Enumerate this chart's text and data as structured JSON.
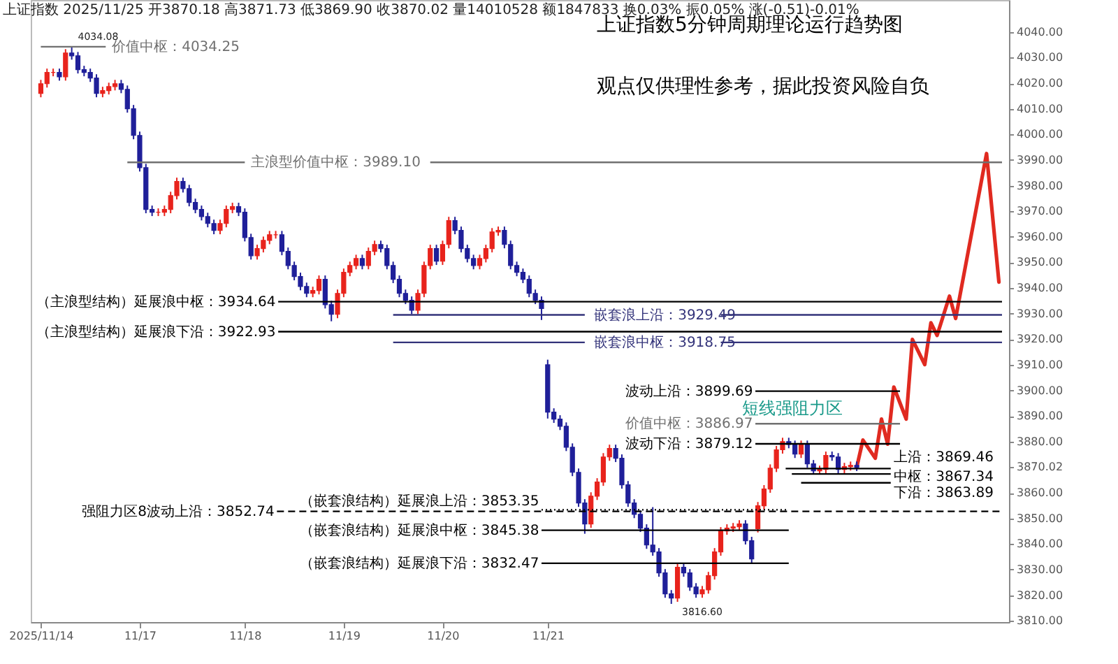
{
  "chart_data": {
    "type": "candlestick",
    "title": "上证指数5分钟周期理论运行趋势图",
    "subtitle": "观点仅供理性参考，据此投资风险自负",
    "categories": [
      "2025/11/14",
      null,
      null,
      null,
      null,
      null,
      null,
      null,
      null,
      null,
      null,
      null,
      null,
      null,
      null,
      null,
      "11/17",
      null,
      null,
      null,
      null,
      null,
      null,
      null,
      null,
      null,
      null,
      null,
      null,
      null,
      null,
      null,
      null,
      "11/18",
      null,
      null,
      null,
      null,
      null,
      null,
      null,
      null,
      null,
      null,
      null,
      null,
      null,
      null,
      null,
      "11/19",
      null,
      null,
      null,
      null,
      null,
      null,
      null,
      null,
      null,
      null,
      null,
      null,
      null,
      null,
      null,
      "11/20",
      null,
      null,
      null,
      null,
      null,
      null,
      null,
      null,
      null,
      null,
      null,
      null,
      null,
      null,
      null,
      null,
      "11/21",
      null,
      null,
      null,
      null,
      null,
      null,
      null,
      null,
      null,
      null,
      null,
      null,
      null,
      null,
      null,
      null,
      null,
      null,
      null,
      null,
      null,
      null,
      null,
      null,
      null,
      null,
      null,
      null,
      null,
      null,
      null,
      null,
      null,
      null,
      null,
      null,
      null,
      null,
      null,
      null,
      null,
      null,
      null,
      null,
      null,
      null,
      null,
      null,
      null,
      null,
      null,
      null,
      null,
      null,
      null,
      null,
      null,
      null,
      null,
      null,
      null,
      null,
      null,
      null,
      null,
      null,
      null,
      null,
      null,
      null,
      null,
      null,
      null
    ],
    "ohlc": [
      [
        4016,
        4021.3,
        4014.5,
        4019.8
      ],
      [
        4019.8,
        4025.7,
        4018.3,
        4024.2
      ],
      [
        4024.2,
        4025.7,
        4022.7,
        4024.2
      ],
      [
        4024.2,
        4025.7,
        4021,
        4022.5
      ],
      [
        4022.5,
        4033.3,
        4021,
        4031.8
      ],
      [
        4031.8,
        4034.08,
        4029.2,
        4030.7
      ],
      [
        4030.7,
        4032.2,
        4023.8,
        4025.3
      ],
      [
        4025.3,
        4026.8,
        4022.7,
        4024.2
      ],
      [
        4024.2,
        4025.7,
        4020.5,
        4022
      ],
      [
        4022,
        4023.5,
        4014.5,
        4016
      ],
      [
        4016,
        4018.6,
        4014.5,
        4017.1
      ],
      [
        4017.1,
        4020.2,
        4015.6,
        4018.7
      ],
      [
        4018.7,
        4021.3,
        4017.2,
        4019.8
      ],
      [
        4019.8,
        4021.3,
        4016.1,
        4017.6
      ],
      [
        4017.6,
        4019.1,
        4008.5,
        4010
      ],
      [
        4010,
        4011.5,
        3998.1,
        3999.6
      ],
      [
        3999.6,
        4001.1,
        3985.5,
        3987
      ],
      [
        3987,
        3988.5,
        3969.2,
        3970.7
      ],
      [
        3970.7,
        3972.2,
        3968.1,
        3969.6
      ],
      [
        3969.6,
        3971.1,
        3968.1,
        3969.6
      ],
      [
        3969.6,
        3972.2,
        3968.1,
        3970.7
      ],
      [
        3970.7,
        3977.6,
        3969.2,
        3976.1
      ],
      [
        3976.1,
        3983.1,
        3974.6,
        3981.6
      ],
      [
        3981.6,
        3983.1,
        3977.3,
        3978.8
      ],
      [
        3978.8,
        3980.3,
        3971.9,
        3973.4
      ],
      [
        3973.4,
        3974.9,
        3969.2,
        3970.7
      ],
      [
        3970.7,
        3972.2,
        3966.4,
        3967.9
      ],
      [
        3967.9,
        3969.4,
        3963.7,
        3965.2
      ],
      [
        3965.2,
        3966.7,
        3961,
        3962.5
      ],
      [
        3962.5,
        3966.7,
        3961,
        3965.2
      ],
      [
        3965.2,
        3972.2,
        3963.7,
        3970.7
      ],
      [
        3970.7,
        3973.3,
        3969.2,
        3971.8
      ],
      [
        3971.8,
        3973.3,
        3968.1,
        3969.6
      ],
      [
        3969.6,
        3971.1,
        3958.2,
        3959.7
      ],
      [
        3959.7,
        3961.2,
        3951.1,
        3952.6
      ],
      [
        3952.6,
        3956.9,
        3951.1,
        3955.4
      ],
      [
        3955.4,
        3960.1,
        3953.9,
        3958.6
      ],
      [
        3958.6,
        3962.3,
        3957.1,
        3960.8
      ],
      [
        3960.8,
        3962.3,
        3959.3,
        3960.8
      ],
      [
        3960.8,
        3962.3,
        3952.8,
        3954.3
      ],
      [
        3954.3,
        3955.8,
        3947.3,
        3948.8
      ],
      [
        3948.8,
        3950.3,
        3943,
        3944.5
      ],
      [
        3944.5,
        3946,
        3939.1,
        3940.6
      ],
      [
        3940.6,
        3942.1,
        3936.4,
        3937.9
      ],
      [
        3937.9,
        3940.5,
        3936.4,
        3939
      ],
      [
        3939,
        3944.9,
        3937.5,
        3943.4
      ],
      [
        3943.4,
        3944.9,
        3932,
        3933.5
      ],
      [
        3933.5,
        3935,
        3927,
        3929.7
      ],
      [
        3929.7,
        3939.4,
        3928.2,
        3937.9
      ],
      [
        3937.9,
        3947.6,
        3936.4,
        3946.1
      ],
      [
        3946.1,
        3950.3,
        3944.6,
        3948.8
      ],
      [
        3948.8,
        3953,
        3947.3,
        3951.5
      ],
      [
        3951.5,
        3953,
        3947.3,
        3948.8
      ],
      [
        3948.8,
        3955.8,
        3947.3,
        3954.3
      ],
      [
        3954.3,
        3958.5,
        3952.8,
        3957
      ],
      [
        3957,
        3958.5,
        3953.9,
        3955.4
      ],
      [
        3955.4,
        3956.9,
        3947.3,
        3948.8
      ],
      [
        3948.8,
        3950.3,
        3941.9,
        3943.4
      ],
      [
        3943.4,
        3944.9,
        3936.4,
        3937.9
      ],
      [
        3937.9,
        3939.4,
        3933.7,
        3935.2
      ],
      [
        3935.2,
        3936.7,
        3929.8,
        3931.3
      ],
      [
        3931.3,
        3939.4,
        3929.8,
        3937.9
      ],
      [
        3937.9,
        3950.3,
        3936.4,
        3948.8
      ],
      [
        3948.8,
        3956.9,
        3947.3,
        3955.4
      ],
      [
        3955.4,
        3956.9,
        3949,
        3950.5
      ],
      [
        3950.5,
        3958.5,
        3949,
        3957
      ],
      [
        3957,
        3967.8,
        3955.5,
        3966.3
      ],
      [
        3966.3,
        3967.8,
        3961,
        3962.5
      ],
      [
        3962.5,
        3964,
        3953.9,
        3955.4
      ],
      [
        3955.4,
        3956.9,
        3950,
        3951.5
      ],
      [
        3951.5,
        3953,
        3947.3,
        3948.8
      ],
      [
        3948.8,
        3953,
        3947.3,
        3951.5
      ],
      [
        3951.5,
        3956.9,
        3950,
        3955.4
      ],
      [
        3955.4,
        3963.4,
        3953.9,
        3961.9
      ],
      [
        3961.9,
        3964,
        3960.4,
        3962.5
      ],
      [
        3962.5,
        3964,
        3955.5,
        3957
      ],
      [
        3957,
        3958.5,
        3947.3,
        3948.8
      ],
      [
        3948.8,
        3950.3,
        3944.6,
        3946.1
      ],
      [
        3946.1,
        3947.6,
        3941.9,
        3943.4
      ],
      [
        3943.4,
        3944.9,
        3936.4,
        3937.9
      ],
      [
        3937.9,
        3939.4,
        3933.7,
        3935.2
      ],
      [
        3935.2,
        3936.7,
        3927.5,
        3932
      ],
      [
        3910,
        3912,
        3889,
        3891.5
      ],
      [
        3891.5,
        3893,
        3887.3,
        3888.8
      ],
      [
        3888.8,
        3890.3,
        3884.5,
        3886
      ],
      [
        3886,
        3887.5,
        3876.3,
        3877.8
      ],
      [
        3877.8,
        3879.3,
        3866.5,
        3868
      ],
      [
        3868,
        3869.5,
        3854.5,
        3856
      ],
      [
        3856,
        3857.5,
        3844,
        3847.8
      ],
      [
        3847.8,
        3860.2,
        3846.3,
        3858.7
      ],
      [
        3858.7,
        3865.7,
        3857.2,
        3864.2
      ],
      [
        3864.2,
        3875.5,
        3862.7,
        3874
      ],
      [
        3874,
        3878.8,
        3872.5,
        3877.3
      ],
      [
        3877.3,
        3878.8,
        3872,
        3873.5
      ],
      [
        3873.5,
        3875,
        3861.6,
        3863.1
      ],
      [
        3863.1,
        3864.6,
        3854.5,
        3856
      ],
      [
        3856,
        3857.5,
        3850.1,
        3851.6
      ],
      [
        3851.6,
        3853.1,
        3844.7,
        3846.2
      ],
      [
        3846.2,
        3847.7,
        3838.1,
        3839.6
      ],
      [
        3839.6,
        3854.4,
        3835.4,
        3836.9
      ],
      [
        3836.9,
        3838.4,
        3827.2,
        3828.7
      ],
      [
        3828.7,
        3830.2,
        3819,
        3820.5
      ],
      [
        3820.5,
        3822,
        3816.6,
        3818.9
      ],
      [
        3818.9,
        3832.4,
        3817.4,
        3830.9
      ],
      [
        3830.9,
        3832.4,
        3827.2,
        3828.7
      ],
      [
        3828.7,
        3830.2,
        3821.7,
        3823.2
      ],
      [
        3823.2,
        3824.7,
        3819,
        3820.5
      ],
      [
        3820.5,
        3823.6,
        3819,
        3822.1
      ],
      [
        3822.1,
        3829.1,
        3820.6,
        3827.6
      ],
      [
        3827.6,
        3838.4,
        3826.1,
        3836.9
      ],
      [
        3836.9,
        3846.6,
        3835.4,
        3845.1
      ],
      [
        3845.1,
        3847.7,
        3843.6,
        3846.2
      ],
      [
        3846.2,
        3848.2,
        3844.7,
        3846.7
      ],
      [
        3846.7,
        3849.3,
        3845.2,
        3847.8
      ],
      [
        3847.8,
        3849.3,
        3839.8,
        3841.3
      ],
      [
        3841.3,
        3842.8,
        3832.5,
        3834.2
      ],
      [
        3846,
        3856.4,
        3844.5,
        3854.9
      ],
      [
        3854.9,
        3863,
        3853.4,
        3861.5
      ],
      [
        3861.5,
        3871.1,
        3860,
        3869.6
      ],
      [
        3869.6,
        3878.3,
        3868.1,
        3876.8
      ],
      [
        3876.8,
        3881.5,
        3875.3,
        3880
      ],
      [
        3880,
        3881.5,
        3877.4,
        3878.9
      ],
      [
        3878.9,
        3880.4,
        3873.6,
        3875.1
      ],
      [
        3875.1,
        3880.4,
        3873.6,
        3878.9
      ],
      [
        3878.9,
        3880.4,
        3869.8,
        3871.3
      ],
      [
        3871.3,
        3872.8,
        3867.1,
        3868.6
      ],
      [
        3868.6,
        3870.6,
        3867.1,
        3869.1
      ],
      [
        3869.1,
        3876.1,
        3867.6,
        3874.6
      ],
      [
        3874.6,
        3876.1,
        3872.5,
        3874
      ],
      [
        3874,
        3875.5,
        3867.6,
        3869.1
      ],
      [
        3869.1,
        3871.7,
        3867.6,
        3870.2
      ],
      [
        3870.2,
        3872.2,
        3868.7,
        3870.7
      ],
      [
        3870.7,
        3872.2,
        3868.5,
        3870
      ],
      null,
      null,
      null,
      null,
      null,
      null,
      null,
      null,
      null,
      null,
      null,
      null,
      null,
      null,
      null,
      null,
      null,
      null,
      null,
      null,
      null,
      null,
      null
    ],
    "colors": [
      "#e8231c",
      "#e8231c",
      "#e8231c",
      "#1f1f99",
      "#e8231c",
      "#1f1f99",
      "#1f1f99",
      "#1f1f99",
      "#1f1f99",
      "#1f1f99",
      "#e8231c",
      "#e8231c",
      "#e8231c",
      "#1f1f99",
      "#1f1f99",
      "#1f1f99",
      "#1f1f99",
      "#1f1f99",
      "#1f1f99",
      "#e8231c",
      "#e8231c",
      "#e8231c",
      "#e8231c",
      "#1f1f99",
      "#1f1f99",
      "#1f1f99",
      "#1f1f99",
      "#1f1f99",
      "#1f1f99",
      "#e8231c",
      "#e8231c",
      "#e8231c",
      "#1f1f99",
      "#1f1f99",
      "#1f1f99",
      "#e8231c",
      "#e8231c",
      "#e8231c",
      "#e8231c",
      "#1f1f99",
      "#1f1f99",
      "#1f1f99",
      "#1f1f99",
      "#1f1f99",
      "#e8231c",
      "#e8231c",
      "#1f1f99",
      "#1f1f99",
      "#e8231c",
      "#e8231c",
      "#e8231c",
      "#e8231c",
      "#1f1f99",
      "#e8231c",
      "#e8231c",
      "#1f1f99",
      "#1f1f99",
      "#1f1f99",
      "#1f1f99",
      "#1f1f99",
      "#1f1f99",
      "#e8231c",
      "#e8231c",
      "#e8231c",
      "#1f1f99",
      "#e8231c",
      "#e8231c",
      "#1f1f99",
      "#1f1f99",
      "#1f1f99",
      "#1f1f99",
      "#e8231c",
      "#e8231c",
      "#e8231c",
      "#e8231c",
      "#1f1f99",
      "#1f1f99",
      "#1f1f99",
      "#1f1f99",
      "#1f1f99",
      "#1f1f99",
      "#1f1f99",
      "#1f1f99",
      "#1f1f99",
      "#1f1f99",
      "#1f1f99",
      "#1f1f99",
      "#1f1f99",
      "#1f1f99",
      "#e8231c",
      "#e8231c",
      "#e8231c",
      "#e8231c",
      "#1f1f99",
      "#1f1f99",
      "#1f1f99",
      "#1f1f99",
      "#1f1f99",
      "#1f1f99",
      "#1f1f99",
      "#1f1f99",
      "#1f1f99",
      "#1f1f99",
      "#e8231c",
      "#1f1f99",
      "#1f1f99",
      "#1f1f99",
      "#e8231c",
      "#e8231c",
      "#e8231c",
      "#e8231c",
      "#e8231c",
      "#e8231c",
      "#e8231c",
      "#1f1f99",
      "#1f1f99",
      "#e8231c",
      "#e8231c",
      "#e8231c",
      "#e8231c",
      "#e8231c",
      "#1f1f99",
      "#1f1f99",
      "#e8231c",
      "#1f1f99",
      "#1f1f99",
      "#e8231c",
      "#e8231c",
      "#1f1f99",
      "#1f1f99",
      "#e8231c",
      "#e8231c",
      "#1f1f99",
      null,
      null,
      null,
      null,
      null,
      null,
      null,
      null,
      null,
      null,
      null,
      null,
      null,
      null,
      null,
      null,
      null,
      null,
      null,
      null,
      null,
      null,
      null
    ],
    "series": [
      {
        "type": "line",
        "color": "#e02a20",
        "values": [
          null,
          null,
          null,
          null,
          null,
          null,
          null,
          null,
          null,
          null,
          null,
          null,
          null,
          null,
          null,
          null,
          null,
          null,
          null,
          null,
          null,
          null,
          null,
          null,
          null,
          null,
          null,
          null,
          null,
          null,
          null,
          null,
          null,
          null,
          null,
          null,
          null,
          null,
          null,
          null,
          null,
          null,
          null,
          null,
          null,
          null,
          null,
          null,
          null,
          null,
          null,
          null,
          null,
          null,
          null,
          null,
          null,
          null,
          null,
          null,
          null,
          null,
          null,
          null,
          null,
          null,
          null,
          null,
          null,
          null,
          null,
          null,
          null,
          null,
          null,
          null,
          null,
          null,
          null,
          null,
          null,
          null,
          null,
          null,
          null,
          null,
          null,
          null,
          null,
          null,
          null,
          null,
          null,
          null,
          null,
          null,
          null,
          null,
          null,
          null,
          null,
          null,
          null,
          null,
          null,
          null,
          null,
          null,
          null,
          null,
          null,
          null,
          null,
          null,
          null,
          null,
          null,
          null,
          null,
          null,
          null,
          null,
          null,
          null,
          null,
          null,
          null,
          null,
          null,
          null,
          null,
          null,
          3870.0,
          3880.6,
          null,
          3873.5,
          3888.8,
          3879.0,
          3901.3,
          null,
          3888.8,
          3919.9,
          null,
          3910.1,
          3926.4,
          3921.5,
          null,
          3936.8,
          3928.1,
          null,
          null,
          null,
          null,
          3992.5,
          null,
          3942.3
        ]
      }
    ],
    "ylim": [
      3809.5,
      4052.5
    ],
    "yticks": [
      {
        "value": 3810,
        "label": "3810.00"
      },
      {
        "value": 3820,
        "label": "3820.00"
      },
      {
        "value": 3830,
        "label": "3830.00"
      },
      {
        "value": 3840,
        "label": "3840.00"
      },
      {
        "value": 3850,
        "label": "3850.00"
      },
      {
        "value": 3860,
        "label": "3860.00"
      },
      {
        "value": 3870.02,
        "label": "3870.02"
      },
      {
        "value": 3880,
        "label": "3880.00"
      },
      {
        "value": 3890,
        "label": "3890.00"
      },
      {
        "value": 3900,
        "label": "3900.00"
      },
      {
        "value": 3910,
        "label": "3910.00"
      },
      {
        "value": 3920,
        "label": "3920.00"
      },
      {
        "value": 3930,
        "label": "3930.00"
      },
      {
        "value": 3940,
        "label": "3940.00"
      },
      {
        "value": 3950,
        "label": "3950.00"
      },
      {
        "value": 3960,
        "label": "3960.00"
      },
      {
        "value": 3970,
        "label": "3970.00"
      },
      {
        "value": 3980,
        "label": "3980.00"
      },
      {
        "value": 3990,
        "label": "3990.00"
      },
      {
        "value": 4000,
        "label": "4000.00"
      },
      {
        "value": 4010,
        "label": "4010.00"
      },
      {
        "value": 4020,
        "label": "4020.00"
      },
      {
        "value": 4030,
        "label": "4030.00"
      },
      {
        "value": 4040,
        "label": "4040.00"
      }
    ],
    "ref_lines": [
      {
        "axis": "y",
        "value": 4034.25,
        "label": "价值中枢：4034.25",
        "color": "#707070"
      },
      {
        "axis": "y",
        "value": 3989.1,
        "label": "主浪型价值中枢：3989.10",
        "color": "#707070"
      },
      {
        "axis": "y",
        "value": 3934.64,
        "label": "（主浪型结构）延展浪中枢：3934.64",
        "color": "#000000"
      },
      {
        "axis": "y",
        "value": 3929.49,
        "label": "嵌套浪上沿：3929.49",
        "color": "#33337a"
      },
      {
        "axis": "y",
        "value": 3922.93,
        "label": "（主浪型结构）延展浪下沿：3922.93",
        "color": "#000000"
      },
      {
        "axis": "y",
        "value": 3918.75,
        "label": "嵌套浪中枢：3918.75",
        "color": "#33337a"
      },
      {
        "axis": "y",
        "value": 3899.69,
        "label": "波动上沿：3899.69",
        "color": "#000000"
      },
      {
        "axis": "y",
        "value": 3886.97,
        "label": "价值中枢：3886.97",
        "color": "#707070"
      },
      {
        "axis": "y",
        "value": 3879.12,
        "label": "波动下沿：3879.12",
        "color": "#000000"
      },
      {
        "axis": "y",
        "value": 3869.46,
        "label": "上沿：3869.46",
        "color": "#000000"
      },
      {
        "axis": "y",
        "value": 3867.34,
        "label": "中枢：3867.34",
        "color": "#000000"
      },
      {
        "axis": "y",
        "value": 3863.89,
        "label": "下沿：3863.89",
        "color": "#000000"
      },
      {
        "axis": "y",
        "value": 3853.35,
        "label": "（嵌套浪结构）延展浪上沿：3853.35",
        "color": "#000000",
        "line_style": "dotted"
      },
      {
        "axis": "y",
        "value": 3852.74,
        "label": "强阻力区8波动上沿：3852.74",
        "color": "#000000",
        "line_style": "dashed"
      },
      {
        "axis": "y",
        "value": 3845.38,
        "label": "（嵌套浪结构）延展浪中枢：3845.38",
        "color": "#000000"
      },
      {
        "axis": "y",
        "value": 3832.47,
        "label": "（嵌套浪结构）延展浪下沿：3832.47",
        "color": "#000000"
      }
    ],
    "annotations": [
      "上证指数 2025/11/25 开3870.18 高3871.73 低3869.90 收3870.02 量14010528 额1847833 换0.03% 振0.05% 涨(-0.51)-0.01%",
      {
        "text": "4034.08",
        "y": 4034.08
      },
      "3816.60",
      "短线强阻力区"
    ]
  }
}
